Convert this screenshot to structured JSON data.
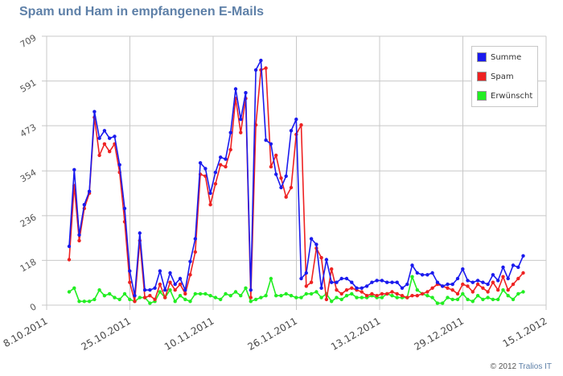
{
  "header": {
    "title": "Spam und Ham in empfangenen E-Mails"
  },
  "footer": {
    "copyright_prefix": "© 2012",
    "brand": "Tralios IT"
  },
  "colors": {
    "summe": "#1a1aee",
    "spam": "#ee2222",
    "erwuenscht": "#22ee22",
    "grid": "#c8c8c8",
    "title": "#5e80a8"
  },
  "legend": [
    {
      "label": "Summe",
      "color": "#1a1aee"
    },
    {
      "label": "Spam",
      "color": "#ee2222"
    },
    {
      "label": "Erwünscht",
      "color": "#22ee22"
    }
  ],
  "chart_data": {
    "type": "line",
    "title": "Spam und Ham in empfangenen E-Mails",
    "xlabel": "",
    "ylabel": "",
    "ylim": [
      0,
      709
    ],
    "yticks": [
      "0",
      "118",
      "236",
      "354",
      "473",
      "591",
      "709"
    ],
    "xticks": [
      "8.10.2011",
      "25.10.2011",
      "10.11.2011",
      "26.11.2011",
      "13.12.2011",
      "29.12.2011",
      "15.1.2012"
    ],
    "grid": true,
    "legend_position": "top-right",
    "x_start": "12.10.2011",
    "x_step": "1 day",
    "series": [
      {
        "name": "Summe",
        "values": [
          155,
          357,
          185,
          265,
          300,
          510,
          440,
          460,
          440,
          445,
          370,
          255,
          90,
          25,
          190,
          40,
          40,
          45,
          90,
          40,
          85,
          55,
          70,
          40,
          115,
          175,
          375,
          360,
          295,
          350,
          390,
          385,
          455,
          570,
          490,
          560,
          40,
          620,
          645,
          435,
          425,
          345,
          310,
          340,
          460,
          490,
          70,
          85,
          175,
          160,
          45,
          120,
          60,
          60,
          70,
          70,
          60,
          45,
          45,
          50,
          60,
          65,
          65,
          60,
          60,
          60,
          45,
          55,
          105,
          85,
          80,
          80,
          85,
          60,
          50,
          55,
          55,
          70,
          95,
          65,
          60,
          65,
          60,
          55,
          80,
          65,
          100,
          70,
          105,
          100,
          130
        ]
      },
      {
        "name": "Spam",
        "values": [
          120,
          315,
          170,
          255,
          295,
          495,
          395,
          425,
          405,
          425,
          350,
          220,
          60,
          10,
          170,
          20,
          25,
          15,
          55,
          20,
          60,
          40,
          55,
          30,
          80,
          140,
          345,
          340,
          265,
          320,
          370,
          365,
          410,
          545,
          455,
          545,
          20,
          475,
          620,
          625,
          365,
          395,
          335,
          285,
          310,
          450,
          475,
          50,
          60,
          150,
          125,
          15,
          95,
          40,
          30,
          40,
          45,
          40,
          35,
          25,
          30,
          25,
          30,
          30,
          35,
          30,
          25,
          20,
          25,
          25,
          30,
          35,
          45,
          55,
          50,
          45,
          40,
          30,
          55,
          50,
          35,
          55,
          45,
          35,
          60,
          40,
          75,
          40,
          55,
          70,
          85
        ]
      },
      {
        "name": "Erwünscht",
        "values": [
          35,
          45,
          10,
          10,
          10,
          15,
          40,
          25,
          30,
          20,
          15,
          30,
          15,
          10,
          20,
          20,
          5,
          10,
          35,
          20,
          40,
          10,
          25,
          15,
          10,
          30,
          30,
          30,
          25,
          20,
          15,
          30,
          25,
          35,
          25,
          45,
          10,
          15,
          20,
          25,
          70,
          25,
          25,
          30,
          25,
          20,
          20,
          30,
          30,
          35,
          20,
          30,
          10,
          20,
          15,
          25,
          30,
          20,
          20,
          20,
          25,
          20,
          20,
          30,
          25,
          20,
          20,
          20,
          75,
          40,
          30,
          25,
          20,
          5,
          5,
          20,
          15,
          15,
          30,
          15,
          10,
          25,
          15,
          20,
          15,
          15,
          40,
          25,
          15,
          30,
          35
        ]
      }
    ]
  }
}
